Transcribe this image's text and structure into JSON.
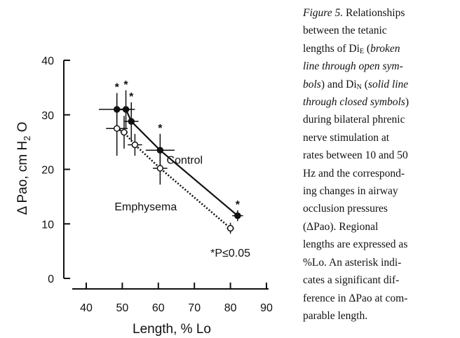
{
  "chart_data": {
    "type": "scatter",
    "ylabel_parts": [
      {
        "text": "Δ Pao, cm H"
      },
      {
        "text": "2",
        "sub": true
      },
      {
        "text": " O"
      }
    ],
    "xlabel": "Length, % Lo",
    "xlim": [
      40,
      90
    ],
    "xticks": [
      40,
      50,
      60,
      70,
      80,
      90
    ],
    "ylim": [
      0,
      40
    ],
    "yticks": [
      0,
      10,
      20,
      30,
      40
    ],
    "series": [
      {
        "name": "Control",
        "color": "#111111",
        "marker": "filled",
        "dash": false,
        "x": [
          48.5,
          51,
          52.5,
          60.5,
          82
        ],
        "values": [
          31,
          31,
          28.8,
          23.5,
          11.5
        ],
        "xerr": [
          5,
          1.5,
          2,
          4,
          1.5
        ],
        "yerr": [
          3,
          3.5,
          3.5,
          3,
          1
        ],
        "marker_labels": [
          "*",
          "*",
          "*",
          "*",
          "*"
        ]
      },
      {
        "name": "Emphysema",
        "color": "#111111",
        "marker": "open",
        "dash": true,
        "x": [
          48.5,
          50.5,
          53.5,
          60.5,
          80
        ],
        "values": [
          27.5,
          26.8,
          24.5,
          20.2,
          9.2
        ],
        "xerr": [
          3,
          1,
          2,
          2,
          1
        ],
        "yerr": [
          5,
          3,
          2,
          3,
          1
        ]
      }
    ],
    "annotations": [
      {
        "text": "Control",
        "x": 67.3,
        "y": 21
      },
      {
        "text": "Emphysema",
        "x": 56.5,
        "y": 12.5
      },
      {
        "text": "*P≤0.05",
        "x": 80,
        "y": 4
      }
    ]
  },
  "caption": [
    [
      {
        "text": "Figure 5.",
        "italic": true
      },
      {
        "text": " Relationships"
      }
    ],
    [
      {
        "text": "between the tetanic"
      }
    ],
    [
      {
        "text": "lengths of Di"
      },
      {
        "text": "E",
        "sub": true
      },
      {
        "text": " ("
      },
      {
        "text": "broken",
        "italic": true
      }
    ],
    [
      {
        "text": "line through open sym-",
        "italic": true
      }
    ],
    [
      {
        "text": "bols",
        "italic": true
      },
      {
        "text": ") and Di"
      },
      {
        "text": "N",
        "sub": true
      },
      {
        "text": " ("
      },
      {
        "text": "solid line",
        "italic": true
      }
    ],
    [
      {
        "text": "through closed symbols",
        "italic": true
      },
      {
        "text": ")"
      }
    ],
    [
      {
        "text": "during bilateral phrenic"
      }
    ],
    [
      {
        "text": "nerve stimulation at"
      }
    ],
    [
      {
        "text": "rates between 10 and 50"
      }
    ],
    [
      {
        "text": "Hz and the correspond-"
      }
    ],
    [
      {
        "text": "ing changes in airway"
      }
    ],
    [
      {
        "text": "occlusion pressures"
      }
    ],
    [
      {
        "text": "(ΔPao). Regional"
      }
    ],
    [
      {
        "text": "lengths are expressed as"
      }
    ],
    [
      {
        "text": "%Lo. An asterisk indi-"
      }
    ],
    [
      {
        "text": "cates a significant dif-"
      }
    ],
    [
      {
        "text": "ference in ΔPao at com-"
      }
    ],
    [
      {
        "text": "parable length."
      }
    ]
  ]
}
